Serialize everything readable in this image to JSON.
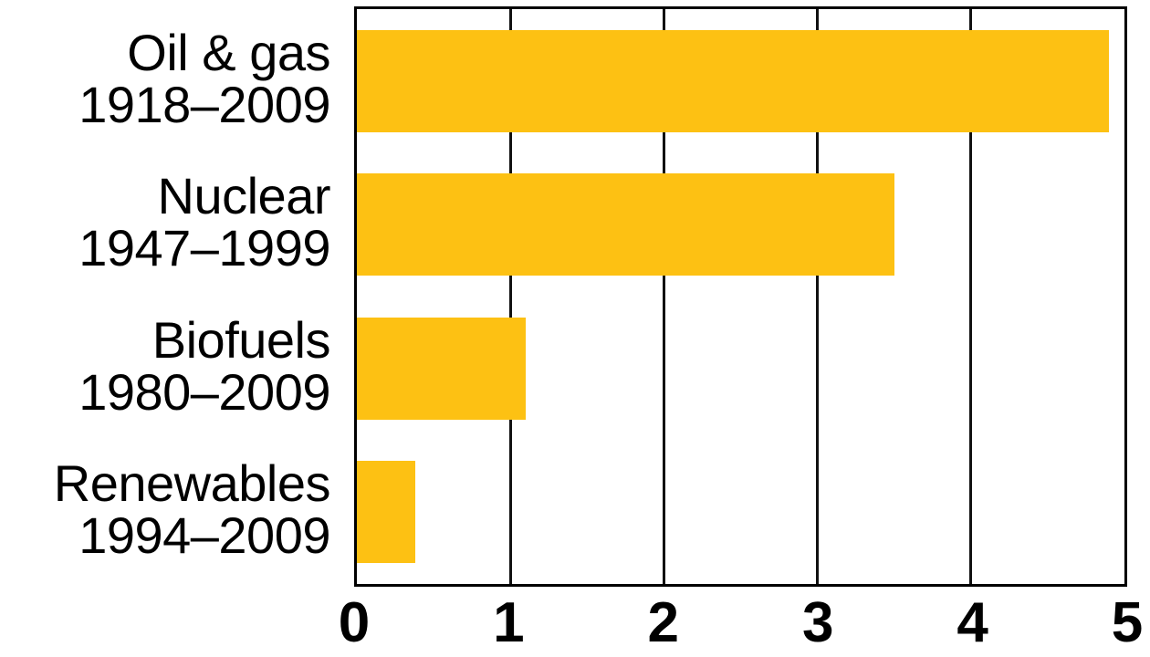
{
  "chart_data": {
    "type": "bar",
    "orientation": "horizontal",
    "title": "",
    "xlabel": "",
    "ylabel": "",
    "xlim": [
      0,
      5
    ],
    "x_ticks": [
      "0",
      "1",
      "2",
      "3",
      "4",
      "5"
    ],
    "grid": "vertical gridlines at each integer tick, drawn behind bars",
    "legend": "none",
    "bar_color": "#FDC113",
    "axis_color": "#000000",
    "text_color": "#000000",
    "bars": [
      {
        "label": "Oil & gas",
        "period": "1918–2009",
        "value": 4.9
      },
      {
        "label": "Nuclear",
        "period": "1947–1999",
        "value": 3.5
      },
      {
        "label": "Biofuels",
        "period": "1980–2009",
        "value": 1.1
      },
      {
        "label": "Renewables",
        "period": "1994–2009",
        "value": 0.38
      }
    ]
  }
}
